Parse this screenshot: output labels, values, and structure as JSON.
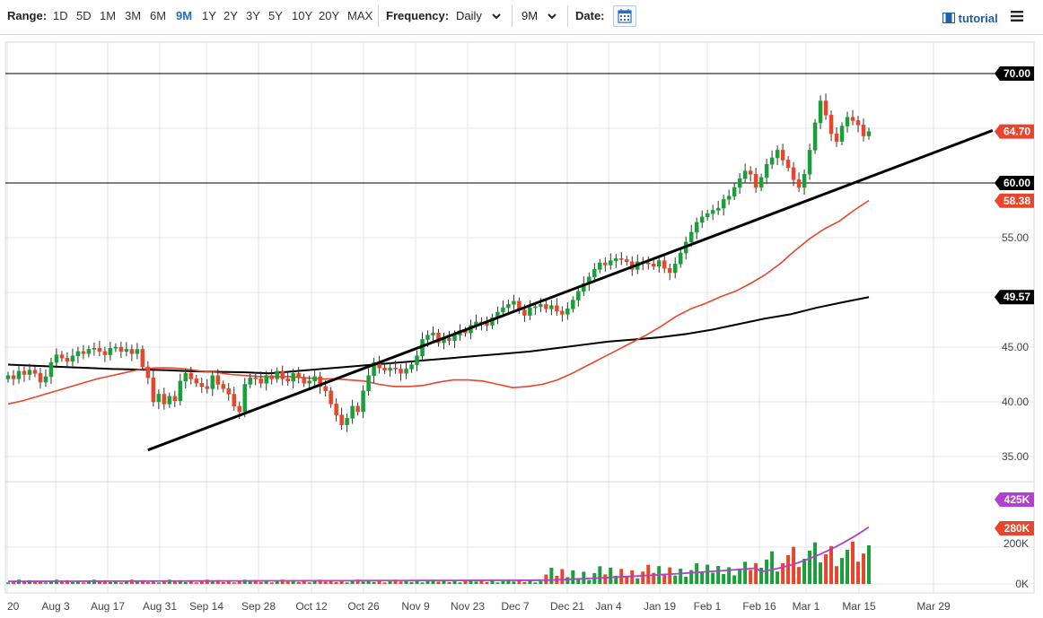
{
  "toolbar": {
    "range_label": "Range:",
    "ranges": [
      "1D",
      "5D",
      "1M",
      "3M",
      "6M",
      "9M",
      "1Y",
      "2Y",
      "3Y",
      "5Y",
      "10Y",
      "20Y",
      "MAX"
    ],
    "active_range": "9M",
    "frequency_label": "Frequency:",
    "frequency_value": "Daily",
    "period_value": "9M",
    "date_label": "Date:",
    "tutorial_label": "tutorial"
  },
  "chart_data": {
    "type": "candlestick",
    "y_ticks": [
      35.0,
      40.0,
      45.0,
      50.0,
      55.0,
      60.0,
      65.0,
      70.0
    ],
    "y_tick_labels": [
      "35.00",
      "40.00",
      "45.00",
      "55.00"
    ],
    "ylim": [
      33.8,
      72.0
    ],
    "x_tick_labels": [
      "20",
      "Aug 3",
      "Aug 17",
      "Aug 31",
      "Sep 14",
      "Sep 28",
      "Oct 12",
      "Oct 26",
      "Nov 9",
      "Nov 23",
      "Dec 7",
      "Dec 21",
      "Jan 4",
      "Jan 19",
      "Feb 1",
      "Feb 16",
      "Mar 1",
      "Mar 15",
      "Mar 29"
    ],
    "horizontal_lines": [
      70.0,
      60.0
    ],
    "price_badges": [
      {
        "label": "70.00",
        "value": 70.0,
        "color": "#000000"
      },
      {
        "label": "64.70",
        "value": 64.7,
        "color": "#e8452c"
      },
      {
        "label": "60.00",
        "value": 60.0,
        "color": "#000000"
      },
      {
        "label": "58.38",
        "value": 58.38,
        "color": "#e8452c"
      },
      {
        "label": "49.57",
        "value": 49.57,
        "color": "#000000"
      }
    ],
    "closes": [
      42.4,
      42.1,
      42.8,
      42.5,
      42.9,
      42.6,
      41.8,
      42.3,
      43.6,
      44.3,
      44.0,
      43.7,
      44.2,
      44.6,
      44.4,
      44.8,
      44.9,
      44.6,
      44.3,
      44.9,
      45.0,
      44.6,
      44.8,
      44.4,
      44.8,
      43.2,
      42.2,
      40.0,
      40.7,
      39.8,
      40.5,
      40.1,
      41.9,
      42.6,
      42.1,
      41.7,
      41.4,
      41.2,
      42.4,
      41.6,
      41.2,
      40.7,
      39.6,
      39.1,
      41.6,
      42.2,
      42.1,
      41.7,
      42.4,
      42.1,
      42.8,
      42.1,
      41.9,
      42.6,
      42.2,
      41.7,
      41.9,
      42.3,
      41.4,
      41.0,
      39.8,
      38.8,
      37.9,
      38.5,
      39.6,
      39.1,
      41.0,
      42.4,
      43.6,
      43.1,
      42.9,
      43.1,
      43.0,
      42.6,
      43.0,
      43.4,
      44.2,
      45.7,
      46.1,
      46.3,
      45.4,
      45.8,
      45.6,
      46.1,
      46.5,
      46.3,
      47.0,
      47.3,
      47.2,
      47.0,
      47.7,
      48.2,
      48.6,
      48.9,
      49.2,
      48.4,
      47.9,
      48.6,
      48.7,
      48.9,
      48.5,
      48.8,
      48.3,
      48.0,
      48.5,
      49.3,
      50.1,
      50.8,
      51.4,
      52.1,
      52.7,
      52.5,
      52.9,
      53.1,
      53.0,
      52.8,
      52.1,
      52.8,
      52.7,
      52.6,
      52.4,
      52.9,
      52.2,
      51.8,
      52.6,
      53.6,
      54.6,
      55.5,
      56.4,
      56.9,
      57.2,
      57.5,
      57.7,
      58.5,
      58.8,
      59.6,
      60.4,
      61.1,
      60.8,
      59.6,
      60.5,
      61.7,
      62.3,
      63.0,
      62.1,
      61.4,
      60.3,
      59.6,
      60.8,
      63.0,
      65.5,
      67.5,
      66.2,
      64.5,
      63.8,
      65.2,
      66.0,
      65.7,
      65.3,
      64.3,
      64.7
    ],
    "sma_50": [
      39.8,
      40.1,
      40.5,
      40.9,
      41.3,
      41.7,
      42.1,
      42.4,
      42.7,
      43.0,
      43.1,
      43.1,
      43.0,
      42.8,
      42.7,
      42.5,
      42.4,
      42.3,
      42.3,
      42.3,
      42.2,
      42.1,
      42.1,
      42.0,
      41.9,
      41.6,
      41.4,
      41.4,
      41.5,
      41.8,
      42.0,
      42.0,
      41.9,
      41.6,
      41.3,
      41.4,
      41.6,
      42.0,
      42.6,
      43.3,
      44.0,
      44.7,
      45.4,
      46.1,
      46.9,
      47.8,
      48.5,
      49.0,
      49.6,
      50.1,
      50.8,
      51.6,
      52.6,
      53.8,
      54.9,
      55.8,
      56.5,
      57.5,
      58.4
    ],
    "sma_200": [
      43.4,
      43.3,
      43.2,
      43.1,
      43.0,
      42.95,
      42.9,
      42.8,
      42.75,
      42.7,
      42.6,
      42.8,
      43.0,
      43.2,
      43.4,
      43.6,
      43.8,
      44.0,
      44.2,
      44.4,
      44.6,
      44.9,
      45.2,
      45.5,
      45.7,
      45.9,
      46.2,
      46.6,
      47.1,
      47.6,
      48.0,
      48.6,
      49.1,
      49.57
    ],
    "trendline": {
      "from": [
        26,
        35.6
      ],
      "to": [
        183,
        64.8
      ]
    },
    "volume": {
      "y_ticks": [
        0,
        200000
      ],
      "y_tick_labels": [
        "0K",
        "200K"
      ],
      "badges": [
        {
          "label": "425K",
          "value": 425000,
          "color": "#b23fcf"
        },
        {
          "label": "280K",
          "value": 280000,
          "color": "#e8452c"
        }
      ],
      "ymax": 500000
    },
    "colors": {
      "up": "#1a9e3a",
      "down": "#e8452c",
      "sma50": "#e8452c",
      "sma200": "#000000",
      "volume_avg": "#b23fcf",
      "trend": "#000000"
    }
  }
}
